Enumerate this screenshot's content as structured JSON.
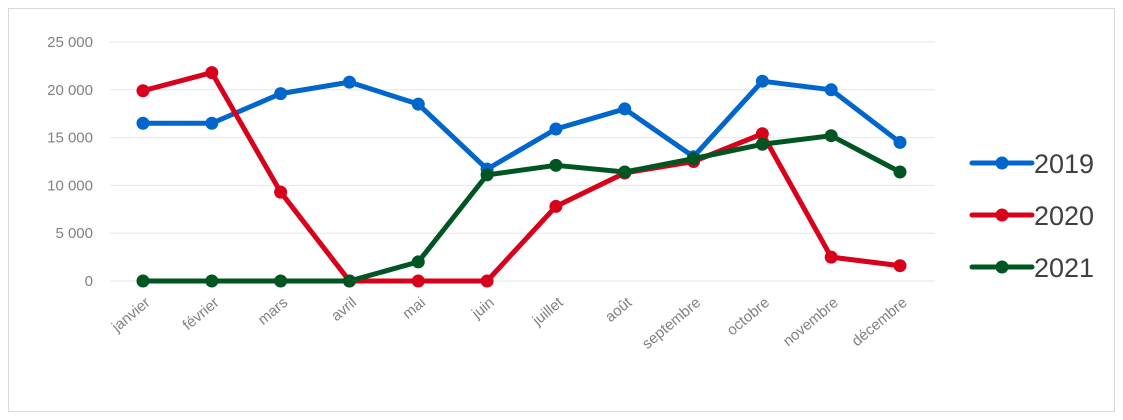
{
  "chart_data": {
    "type": "line",
    "title": "",
    "xlabel": "",
    "ylabel": "",
    "categories": [
      "janvier",
      "février",
      "mars",
      "avril",
      "mai",
      "juin",
      "juillet",
      "août",
      "septembre",
      "octobre",
      "novembre",
      "décembre"
    ],
    "series": [
      {
        "name": "2019",
        "color": "#0066cc",
        "values": [
          16500,
          16500,
          19600,
          20800,
          18500,
          11700,
          15900,
          18000,
          13000,
          20900,
          20000,
          14500
        ]
      },
      {
        "name": "2020",
        "color": "#d9001b",
        "values": [
          19900,
          21800,
          9300,
          0,
          0,
          0,
          7800,
          11300,
          12500,
          15400,
          2500,
          1600
        ]
      },
      {
        "name": "2021",
        "color": "#005522",
        "values": [
          0,
          0,
          0,
          0,
          2000,
          11100,
          12100,
          11400,
          12800,
          14300,
          15200,
          11400
        ]
      }
    ],
    "ylim": [
      0,
      25000
    ],
    "yticks": [
      0,
      5000,
      10000,
      15000,
      20000,
      25000
    ],
    "ytick_labels": [
      "0",
      "5 000",
      "10 000",
      "15 000",
      "20 000",
      "25 000"
    ],
    "grid": true,
    "legend": "right"
  }
}
